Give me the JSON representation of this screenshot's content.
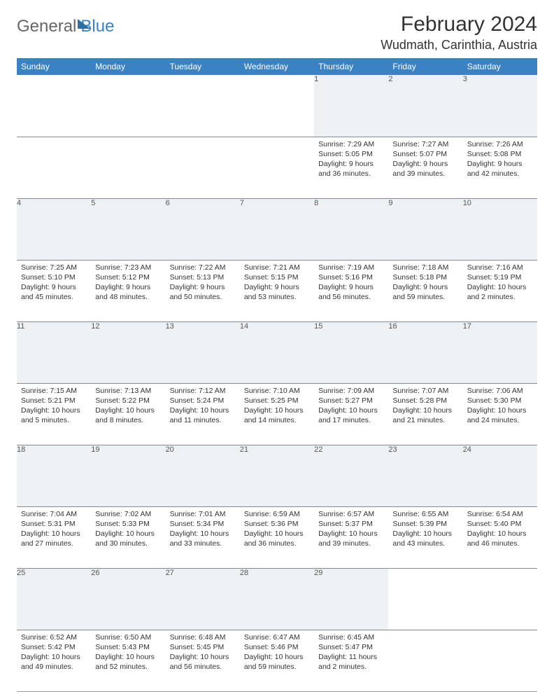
{
  "logo": {
    "part1": "General",
    "part2": "Blue"
  },
  "title": "February 2024",
  "location": "Wudmath, Carinthia, Austria",
  "weekdays": [
    "Sunday",
    "Monday",
    "Tuesday",
    "Wednesday",
    "Thursday",
    "Friday",
    "Saturday"
  ],
  "colors": {
    "header_bg": "#3b82c4",
    "daynum_bg": "#eef1f3",
    "text": "#333333",
    "border": "#999999"
  },
  "weeks": [
    [
      null,
      null,
      null,
      null,
      {
        "n": "1",
        "sunrise": "7:29 AM",
        "sunset": "5:05 PM",
        "dl": "9 hours and 36 minutes."
      },
      {
        "n": "2",
        "sunrise": "7:27 AM",
        "sunset": "5:07 PM",
        "dl": "9 hours and 39 minutes."
      },
      {
        "n": "3",
        "sunrise": "7:26 AM",
        "sunset": "5:08 PM",
        "dl": "9 hours and 42 minutes."
      }
    ],
    [
      {
        "n": "4",
        "sunrise": "7:25 AM",
        "sunset": "5:10 PM",
        "dl": "9 hours and 45 minutes."
      },
      {
        "n": "5",
        "sunrise": "7:23 AM",
        "sunset": "5:12 PM",
        "dl": "9 hours and 48 minutes."
      },
      {
        "n": "6",
        "sunrise": "7:22 AM",
        "sunset": "5:13 PM",
        "dl": "9 hours and 50 minutes."
      },
      {
        "n": "7",
        "sunrise": "7:21 AM",
        "sunset": "5:15 PM",
        "dl": "9 hours and 53 minutes."
      },
      {
        "n": "8",
        "sunrise": "7:19 AM",
        "sunset": "5:16 PM",
        "dl": "9 hours and 56 minutes."
      },
      {
        "n": "9",
        "sunrise": "7:18 AM",
        "sunset": "5:18 PM",
        "dl": "9 hours and 59 minutes."
      },
      {
        "n": "10",
        "sunrise": "7:16 AM",
        "sunset": "5:19 PM",
        "dl": "10 hours and 2 minutes."
      }
    ],
    [
      {
        "n": "11",
        "sunrise": "7:15 AM",
        "sunset": "5:21 PM",
        "dl": "10 hours and 5 minutes."
      },
      {
        "n": "12",
        "sunrise": "7:13 AM",
        "sunset": "5:22 PM",
        "dl": "10 hours and 8 minutes."
      },
      {
        "n": "13",
        "sunrise": "7:12 AM",
        "sunset": "5:24 PM",
        "dl": "10 hours and 11 minutes."
      },
      {
        "n": "14",
        "sunrise": "7:10 AM",
        "sunset": "5:25 PM",
        "dl": "10 hours and 14 minutes."
      },
      {
        "n": "15",
        "sunrise": "7:09 AM",
        "sunset": "5:27 PM",
        "dl": "10 hours and 17 minutes."
      },
      {
        "n": "16",
        "sunrise": "7:07 AM",
        "sunset": "5:28 PM",
        "dl": "10 hours and 21 minutes."
      },
      {
        "n": "17",
        "sunrise": "7:06 AM",
        "sunset": "5:30 PM",
        "dl": "10 hours and 24 minutes."
      }
    ],
    [
      {
        "n": "18",
        "sunrise": "7:04 AM",
        "sunset": "5:31 PM",
        "dl": "10 hours and 27 minutes."
      },
      {
        "n": "19",
        "sunrise": "7:02 AM",
        "sunset": "5:33 PM",
        "dl": "10 hours and 30 minutes."
      },
      {
        "n": "20",
        "sunrise": "7:01 AM",
        "sunset": "5:34 PM",
        "dl": "10 hours and 33 minutes."
      },
      {
        "n": "21",
        "sunrise": "6:59 AM",
        "sunset": "5:36 PM",
        "dl": "10 hours and 36 minutes."
      },
      {
        "n": "22",
        "sunrise": "6:57 AM",
        "sunset": "5:37 PM",
        "dl": "10 hours and 39 minutes."
      },
      {
        "n": "23",
        "sunrise": "6:55 AM",
        "sunset": "5:39 PM",
        "dl": "10 hours and 43 minutes."
      },
      {
        "n": "24",
        "sunrise": "6:54 AM",
        "sunset": "5:40 PM",
        "dl": "10 hours and 46 minutes."
      }
    ],
    [
      {
        "n": "25",
        "sunrise": "6:52 AM",
        "sunset": "5:42 PM",
        "dl": "10 hours and 49 minutes."
      },
      {
        "n": "26",
        "sunrise": "6:50 AM",
        "sunset": "5:43 PM",
        "dl": "10 hours and 52 minutes."
      },
      {
        "n": "27",
        "sunrise": "6:48 AM",
        "sunset": "5:45 PM",
        "dl": "10 hours and 56 minutes."
      },
      {
        "n": "28",
        "sunrise": "6:47 AM",
        "sunset": "5:46 PM",
        "dl": "10 hours and 59 minutes."
      },
      {
        "n": "29",
        "sunrise": "6:45 AM",
        "sunset": "5:47 PM",
        "dl": "11 hours and 2 minutes."
      },
      null,
      null
    ]
  ]
}
